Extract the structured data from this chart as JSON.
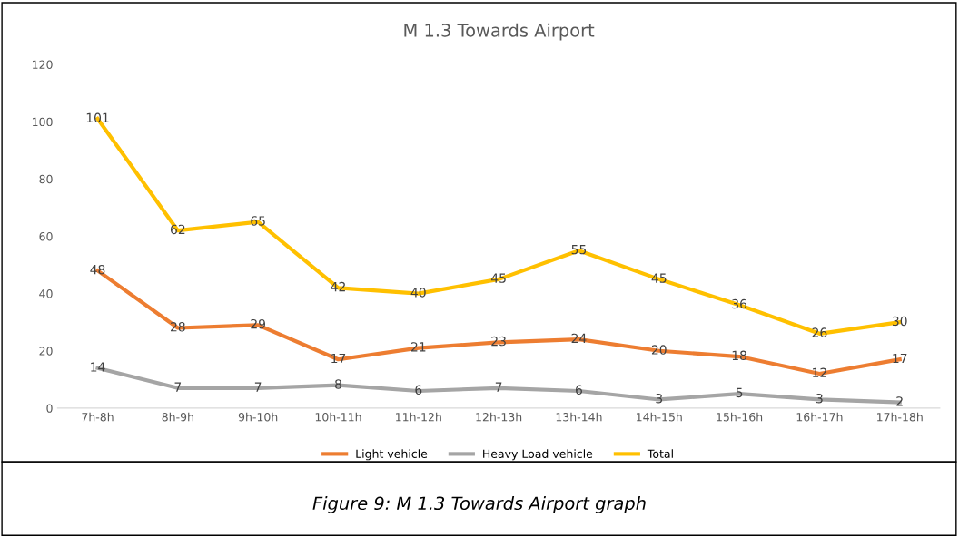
{
  "chart_data": {
    "type": "line",
    "title": "M 1.3 Towards Airport",
    "categories": [
      "7h-8h",
      "8h-9h",
      "9h-10h",
      "10h-11h",
      "11h-12h",
      "12h-13h",
      "13h-14h",
      "14h-15h",
      "15h-16h",
      "16h-17h",
      "17h-18h"
    ],
    "series": [
      {
        "name": "Light vehicle",
        "color": "#ed7d31",
        "values": [
          48,
          28,
          29,
          17,
          21,
          23,
          24,
          20,
          18,
          12,
          17
        ]
      },
      {
        "name": "Heavy Load vehicle",
        "color": "#a5a5a5",
        "values": [
          14,
          7,
          7,
          8,
          6,
          7,
          6,
          3,
          5,
          3,
          2
        ]
      },
      {
        "name": "Total",
        "color": "#ffc000",
        "values": [
          101,
          62,
          65,
          42,
          40,
          45,
          55,
          45,
          36,
          26,
          30
        ]
      }
    ],
    "ylim": [
      0,
      120
    ],
    "yticks": [
      0,
      20,
      40,
      60,
      80,
      100,
      120
    ],
    "grid": false,
    "legend": "bottom",
    "data_labels": true,
    "marker": "none",
    "line_style": "solid",
    "annotations": [
      "Figure 9: M 1.3 Towards Airport graph"
    ]
  }
}
